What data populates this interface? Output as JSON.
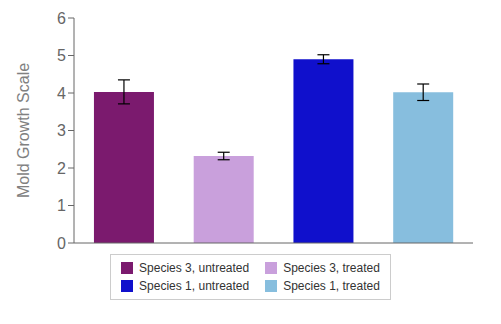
{
  "chart_data": {
    "type": "bar",
    "categories": [
      "Species 3, untreated",
      "Species 3, treated",
      "Species 1, untreated",
      "Species 1, treated"
    ],
    "values": [
      4.03,
      2.32,
      4.9,
      4.02
    ],
    "errors": [
      0.32,
      0.1,
      0.12,
      0.22
    ],
    "colors": [
      "#7B1A6E",
      "#C9A0DC",
      "#1010CC",
      "#87BEDE"
    ],
    "ylabel": "Mold Growth Scale",
    "ylim": [
      0,
      6
    ],
    "yticks": [
      0,
      1,
      2,
      3,
      4,
      5,
      6
    ],
    "tick_labels": "y",
    "legend": "bottom",
    "grid": false
  }
}
